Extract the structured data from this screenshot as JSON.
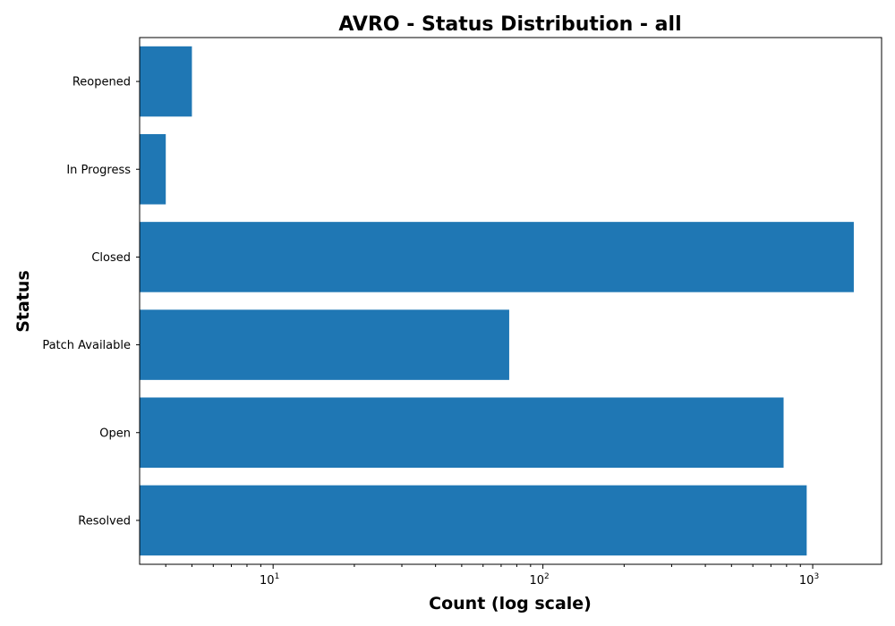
{
  "chart_data": {
    "type": "bar",
    "orientation": "horizontal",
    "title": "AVRO - Status Distribution - all",
    "xlabel": "Count (log scale)",
    "ylabel": "Status",
    "x_scale": "log",
    "xlim": [
      3.2,
      1800
    ],
    "x_ticks": [
      {
        "value": 10,
        "base": "10",
        "exp": "1"
      },
      {
        "value": 100,
        "base": "10",
        "exp": "2"
      },
      {
        "value": 1000,
        "base": "10",
        "exp": "3"
      }
    ],
    "categories": [
      "Resolved",
      "Open",
      "Patch Available",
      "Closed",
      "In Progress",
      "Reopened"
    ],
    "values": [
      950,
      780,
      75,
      1420,
      4,
      5
    ],
    "bar_color": "#1f77b4",
    "grid": false,
    "legend": "none"
  }
}
